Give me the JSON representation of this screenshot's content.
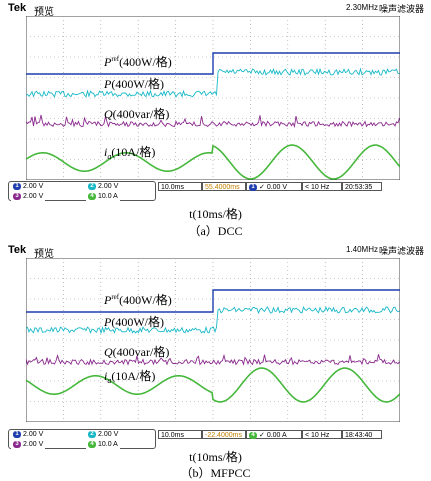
{
  "header": {
    "brand": "Tek",
    "mode": "预览",
    "filter": "噪声滤波器"
  },
  "colors": {
    "pref": "#1f3fae",
    "p": "#1ab9c8",
    "q": "#8b2a8e",
    "ia": "#46b83c",
    "grid": "#9a9a9a"
  },
  "panels": [
    {
      "id": "dcc",
      "caption": "（a）DCC",
      "freq": "2.30MHz",
      "footer": {
        "ch1": "2.00 V",
        "ch2": "2.00 V",
        "ch3": "2.00 V",
        "ch4": "10.0 A",
        "timebase": "10.0ms",
        "position": "55.4000ms",
        "trig_ch": "1",
        "trig_level": "0.00 V",
        "trig_freq": "< 10 Hz",
        "time": "20:53:35"
      },
      "channel_markers": [
        "1",
        "3",
        "4"
      ]
    },
    {
      "id": "mfpcc",
      "caption": "（b）MFPCC",
      "freq": "1.40MHz",
      "footer": {
        "ch1": "2.00 V",
        "ch2": "2.00 V",
        "ch3": "2.00 V",
        "ch4": "10.0 A",
        "timebase": "10.0ms",
        "position": "-22.4000ms",
        "trig_ch": "4",
        "trig_level": "0.00 A",
        "trig_freq": "< 10 Hz",
        "time": "18:43:40"
      },
      "channel_markers": [
        "1",
        "3",
        "4"
      ]
    }
  ],
  "axis_label": "t(10ms/格)",
  "signal_labels": {
    "pref": {
      "main": "P",
      "sup": "ref",
      "scale": "(400W/格)"
    },
    "p": {
      "main": "P",
      "scale": "(400W/格)"
    },
    "q": {
      "main": "Q",
      "scale": "(400var/格)"
    },
    "ia": {
      "main": "i",
      "sub": "a",
      "scale": "(10A/格)"
    }
  },
  "chart_data": [
    {
      "type": "line",
      "title": "（a）DCC",
      "xlabel": "t(10ms/格)",
      "x_divisions": 10,
      "x_per_div_ms": 10,
      "step_at_div": 5,
      "series": [
        {
          "name": "P^ref(400W/格)",
          "before": 2.0,
          "after": 2.0
        },
        {
          "name": "P(400W/格)",
          "before": 2.0,
          "after": 2.0
        },
        {
          "name": "Q(400var/格)",
          "before": 0,
          "after": 0
        },
        {
          "name": "i_a(10A/格)",
          "cycles": 4.5,
          "amp_div_before": 0.3,
          "amp_div_after": 0.55
        }
      ]
    },
    {
      "type": "line",
      "title": "（b）MFPCC",
      "xlabel": "t(10ms/格)",
      "x_divisions": 10,
      "x_per_div_ms": 10,
      "step_at_div": 5,
      "series": [
        {
          "name": "P^ref(400W/格)",
          "before": 2.0,
          "after": 2.0
        },
        {
          "name": "P(400W/格)",
          "before": 2.0,
          "after": 2.0
        },
        {
          "name": "Q(400var/格)",
          "before": 0,
          "after": 0
        },
        {
          "name": "i_a(10A/格)",
          "cycles": 4.5,
          "amp_div_before": 0.3,
          "amp_div_after": 0.55
        }
      ]
    }
  ]
}
